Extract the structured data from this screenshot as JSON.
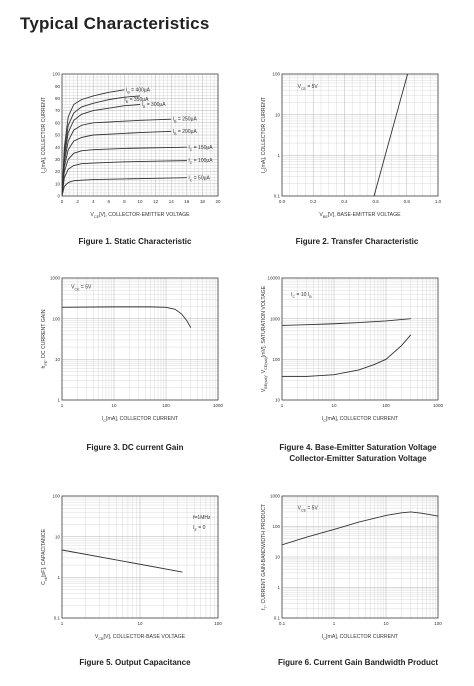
{
  "page_title": "Typical Characteristics",
  "chart_data": [
    {
      "id": "fig1",
      "type": "line",
      "caption": [
        "Figure 1. Static Characteristic"
      ],
      "xlabel": "V_CE[V], COLLECTOR-EMITTER VOLTAGE",
      "ylabel": "I_C[mA], COLLECTOR CURRENT",
      "xscale": "linear",
      "yscale": "linear",
      "xlim": [
        0,
        20
      ],
      "ylim": [
        0,
        100
      ],
      "xticks": [
        0,
        2,
        4,
        6,
        8,
        10,
        12,
        14,
        16,
        18,
        20
      ],
      "yticks": [
        0,
        10,
        20,
        30,
        40,
        50,
        60,
        70,
        80,
        90,
        100
      ],
      "xticklabels": [
        "0",
        "2",
        "4",
        "6",
        "8",
        "10",
        "12",
        "14",
        "16",
        "18",
        "20"
      ],
      "yticklabels": [
        "0",
        "10",
        "20",
        "30",
        "40",
        "50",
        "60",
        "70",
        "80",
        "90",
        "100"
      ],
      "grid": true,
      "series": [
        {
          "name": "I_B = 400μA",
          "x": [
            0,
            0.3,
            0.8,
            1.5,
            2.5,
            4,
            6,
            8
          ],
          "y": [
            0,
            40,
            65,
            75,
            79,
            82,
            85,
            87
          ]
        },
        {
          "name": "I_B = 350μA",
          "x": [
            0,
            0.3,
            0.8,
            1.5,
            2.5,
            4,
            6,
            8,
            10
          ],
          "y": [
            0,
            36,
            58,
            68,
            73,
            76,
            79,
            81,
            82
          ]
        },
        {
          "name": "I_B = 300μA",
          "x": [
            0,
            0.3,
            0.8,
            1.5,
            2.5,
            4,
            6,
            8,
            10
          ],
          "y": [
            0,
            32,
            52,
            62,
            67,
            70,
            72,
            74,
            75
          ]
        },
        {
          "name": "I_B = 250μA",
          "x": [
            0,
            0.3,
            0.8,
            1.5,
            2.5,
            4,
            7,
            10,
            14
          ],
          "y": [
            0,
            28,
            45,
            54,
            58,
            60,
            61,
            62,
            63
          ]
        },
        {
          "name": "I_B = 200μA",
          "x": [
            0,
            0.3,
            0.8,
            1.5,
            2.5,
            4,
            7,
            10,
            14
          ],
          "y": [
            0,
            24,
            38,
            45,
            48,
            50,
            51,
            52,
            53
          ]
        },
        {
          "name": "I_C = 150μA",
          "x": [
            0,
            0.3,
            0.8,
            1.5,
            2.5,
            4,
            8,
            12,
            16
          ],
          "y": [
            0,
            20,
            30,
            35,
            37,
            38,
            39,
            39.5,
            40
          ]
        },
        {
          "name": "I_C = 100μA",
          "x": [
            0,
            0.3,
            0.8,
            1.5,
            2.5,
            4,
            8,
            12,
            16
          ],
          "y": [
            0,
            15,
            22,
            25,
            26.5,
            27,
            28,
            28.5,
            29
          ]
        },
        {
          "name": "I_C = 50μA",
          "x": [
            0,
            0.3,
            0.8,
            1.5,
            2.5,
            4,
            8,
            12,
            16
          ],
          "y": [
            0,
            8,
            11,
            12.5,
            13,
            13.5,
            14,
            14.5,
            15
          ]
        }
      ],
      "annotations": [
        {
          "text": "I_B = 400μA",
          "x": 8.2,
          "y": 87
        },
        {
          "text": "I_B = 350μA",
          "x": 8.0,
          "y": 79
        },
        {
          "text": "I_B = 300μA",
          "x": 10.2,
          "y": 75
        },
        {
          "text": "I_B = 250μA",
          "x": 14.2,
          "y": 63
        },
        {
          "text": "I_B = 200μA",
          "x": 14.2,
          "y": 53
        },
        {
          "text": "I_C = 150μA",
          "x": 16.2,
          "y": 40
        },
        {
          "text": "I_C = 100μA",
          "x": 16.2,
          "y": 29
        },
        {
          "text": "I_C = 50μA",
          "x": 16.2,
          "y": 15
        }
      ]
    },
    {
      "id": "fig2",
      "type": "line",
      "caption": [
        "Figure 2. Transfer Characteristic"
      ],
      "xlabel": "V_BE[V], BASE-EMITTER VOLTAGE",
      "ylabel": "I_C[mA], COLLECTOR CURRENT",
      "xscale": "linear",
      "yscale": "log",
      "xlim": [
        0.0,
        1.0
      ],
      "ylim": [
        0.1,
        100
      ],
      "xticks": [
        0.0,
        0.2,
        0.4,
        0.6,
        0.8,
        1.0
      ],
      "yticks": [
        0.1,
        1,
        10,
        100
      ],
      "xticklabels": [
        "0.0",
        "0.2",
        "0.4",
        "0.6",
        "0.8",
        "1.0"
      ],
      "yticklabels": [
        "0.1",
        "1",
        "10",
        "100"
      ],
      "grid": true,
      "series": [
        {
          "name": "",
          "x": [
            0.59,
            0.805
          ],
          "y": [
            0.1,
            100
          ]
        }
      ],
      "annotations": [
        {
          "text": "V_CE = 5V",
          "x": 0.1,
          "y": 50
        }
      ]
    },
    {
      "id": "fig3",
      "type": "line",
      "caption": [
        "Figure 3. DC current Gain"
      ],
      "xlabel": "I_C[mA], COLLECTOR CURRENT",
      "ylabel": "h_FE, DC CURRENT GAIN",
      "xscale": "log",
      "yscale": "log",
      "xlim": [
        1,
        1000
      ],
      "ylim": [
        1,
        1000
      ],
      "xticks": [
        1,
        10,
        100,
        1000
      ],
      "yticks": [
        1,
        10,
        100,
        1000
      ],
      "xticklabels": [
        "1",
        "10",
        "100",
        "1000"
      ],
      "yticklabels": [
        "1",
        "10",
        "100",
        "1000"
      ],
      "grid": true,
      "series": [
        {
          "name": "",
          "x": [
            1,
            10,
            50,
            100,
            150,
            200,
            250,
            300
          ],
          "y": [
            190,
            195,
            195,
            190,
            170,
            130,
            90,
            60
          ]
        }
      ],
      "annotations": [
        {
          "text": "V_CE = 5V",
          "x": 1.5,
          "y": 600
        }
      ]
    },
    {
      "id": "fig4",
      "type": "line",
      "caption": [
        "Figure 4. Base-Emitter Saturation Voltage",
        "Collector-Emitter Saturation Voltage"
      ],
      "xlabel": "I_C[mA], COLLECTOR CURRENT",
      "ylabel": "V_BE(sat), V_CE(sat)[mV], SATURATION VOLTAGE",
      "xscale": "log",
      "yscale": "log",
      "xlim": [
        1,
        1000
      ],
      "ylim": [
        10,
        10000
      ],
      "xticks": [
        1,
        10,
        100,
        1000
      ],
      "yticks": [
        10,
        100,
        1000,
        10000
      ],
      "xticklabels": [
        "1",
        "10",
        "100",
        "1000"
      ],
      "yticklabels": [
        "10",
        "100",
        "1000",
        "10000"
      ],
      "grid": true,
      "series": [
        {
          "name": "V_BE(sat)",
          "x": [
            1,
            3,
            10,
            30,
            100,
            300
          ],
          "y": [
            680,
            710,
            750,
            800,
            880,
            1000
          ]
        },
        {
          "name": "V_CE(sat)",
          "x": [
            1,
            3,
            10,
            30,
            60,
            100,
            200,
            300
          ],
          "y": [
            38,
            38,
            42,
            55,
            75,
            100,
            220,
            400
          ]
        }
      ],
      "annotations": [
        {
          "text": "I_C = 10 I_B",
          "x": 1.5,
          "y": 4000
        }
      ]
    },
    {
      "id": "fig5",
      "type": "line",
      "caption": [
        "Figure 5. Output Capacitance"
      ],
      "xlabel": "V_CB[V], COLLECTOR-BASE VOLTAGE",
      "ylabel": "C_ob[pF], CAPACITANCE",
      "xscale": "log",
      "yscale": "log",
      "xlim": [
        1,
        100
      ],
      "ylim": [
        0.1,
        100
      ],
      "xticks": [
        1,
        10,
        100
      ],
      "yticks": [
        0.1,
        1,
        10,
        100
      ],
      "xticklabels": [
        "1",
        "10",
        "100"
      ],
      "yticklabels": [
        "0.1",
        "1",
        "10",
        "100"
      ],
      "grid": true,
      "series": [
        {
          "name": "",
          "x": [
            1,
            35
          ],
          "y": [
            4.7,
            1.35
          ]
        }
      ],
      "annotations": [
        {
          "text": "f=1MHz",
          "x": 48,
          "y": 30
        },
        {
          "text": "I_E = 0",
          "x": 48,
          "y": 17
        }
      ]
    },
    {
      "id": "fig6",
      "type": "line",
      "caption": [
        "Figure 6. Current Gain Bandwidth Product"
      ],
      "xlabel": "I_C[mA], COLLECTOR CURRENT",
      "ylabel": "f_T, CURRENT GAIN-BANDWIDTH PRODUCT",
      "xscale": "log",
      "yscale": "log",
      "xlim": [
        0.1,
        100
      ],
      "ylim": [
        0.1,
        1000
      ],
      "xticks": [
        0.1,
        1,
        10,
        100
      ],
      "yticks": [
        0.1,
        1,
        10,
        100,
        1000
      ],
      "xticklabels": [
        "0.1",
        "1",
        "10",
        "100"
      ],
      "yticklabels": [
        "0.1",
        "1",
        "10",
        "100",
        "1000"
      ],
      "grid": true,
      "series": [
        {
          "name": "",
          "x": [
            0.1,
            0.3,
            1,
            3,
            10,
            20,
            30,
            50,
            100
          ],
          "y": [
            25,
            45,
            80,
            140,
            230,
            280,
            300,
            270,
            220
          ]
        }
      ],
      "annotations": [
        {
          "text": "V_CE = 5V",
          "x": 0.2,
          "y": 400
        }
      ]
    }
  ]
}
